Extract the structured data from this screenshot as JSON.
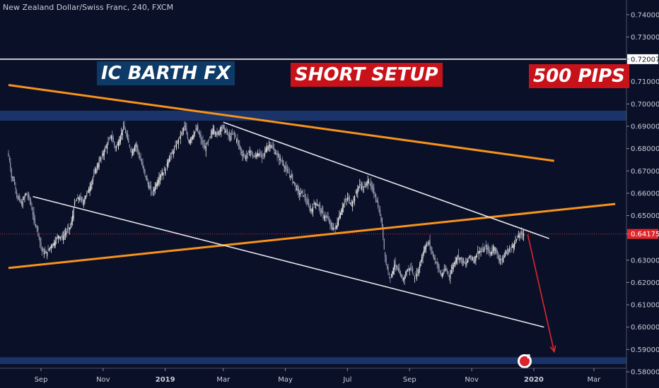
{
  "header": {
    "title": "New Zealand Dollar/Swiss Franc, 240, FXCM"
  },
  "banners": {
    "left": "IC BARTH FX",
    "center": "SHORT SETUP",
    "right": "500 PIPS"
  },
  "colors": {
    "background": "#0b1029",
    "zone": "#1d3a73",
    "orange": "#f7931a",
    "white": "#e6e6ec",
    "red": "#e0262b",
    "up_candle": "#e6e6e6",
    "down_candle": "#9aa0b4"
  },
  "chart_data": {
    "type": "line",
    "symbol": "NZDCHF",
    "timeframe": "240",
    "ylim": [
      0.58,
      0.745
    ],
    "y_ticks": [
      "0.74000",
      "0.73000",
      "0.72007",
      "0.71000",
      "0.70000",
      "0.69000",
      "0.68000",
      "0.67000",
      "0.66000",
      "0.65000",
      "0.64175",
      "0.63000",
      "0.62000",
      "0.61000",
      "0.60000",
      "0.59000",
      "0.58000"
    ],
    "x_ticks": [
      "Sep",
      "Nov",
      "2019",
      "Mar",
      "May",
      "Jul",
      "Sep",
      "Nov",
      "2020",
      "Mar"
    ],
    "x_tick_bars": [
      0,
      30.5,
      61,
      89.5,
      120,
      150.5,
      181,
      211.5,
      242,
      271.5
    ],
    "price_path": [
      [
        -16,
        0.678
      ],
      [
        -15,
        0.675
      ],
      [
        -14,
        0.667
      ],
      [
        -13,
        0.666
      ],
      [
        -11,
        0.658
      ],
      [
        -9,
        0.655
      ],
      [
        -7,
        0.66
      ],
      [
        -5,
        0.657
      ],
      [
        -3,
        0.648
      ],
      [
        -1,
        0.643
      ],
      [
        0,
        0.638
      ],
      [
        1,
        0.634
      ],
      [
        3,
        0.633
      ],
      [
        5,
        0.636
      ],
      [
        7,
        0.638
      ],
      [
        9,
        0.641
      ],
      [
        11,
        0.64
      ],
      [
        13,
        0.643
      ],
      [
        15,
        0.645
      ],
      [
        16,
        0.65
      ],
      [
        17,
        0.656
      ],
      [
        19,
        0.658
      ],
      [
        21,
        0.656
      ],
      [
        23,
        0.66
      ],
      [
        25,
        0.664
      ],
      [
        27,
        0.67
      ],
      [
        29,
        0.674
      ],
      [
        31,
        0.678
      ],
      [
        33,
        0.682
      ],
      [
        35,
        0.686
      ],
      [
        37,
        0.68
      ],
      [
        39,
        0.684
      ],
      [
        41,
        0.69
      ],
      [
        43,
        0.684
      ],
      [
        45,
        0.678
      ],
      [
        47,
        0.682
      ],
      [
        49,
        0.676
      ],
      [
        51,
        0.67
      ],
      [
        53,
        0.664
      ],
      [
        55,
        0.66
      ],
      [
        57,
        0.664
      ],
      [
        59,
        0.668
      ],
      [
        61,
        0.67
      ],
      [
        63,
        0.675
      ],
      [
        65,
        0.678
      ],
      [
        67,
        0.682
      ],
      [
        69,
        0.686
      ],
      [
        71,
        0.69
      ],
      [
        73,
        0.683
      ],
      [
        75,
        0.686
      ],
      [
        77,
        0.689
      ],
      [
        79,
        0.684
      ],
      [
        81,
        0.68
      ],
      [
        83,
        0.684
      ],
      [
        85,
        0.689
      ],
      [
        87,
        0.686
      ],
      [
        89,
        0.69
      ],
      [
        91,
        0.688
      ],
      [
        93,
        0.685
      ],
      [
        95,
        0.687
      ],
      [
        97,
        0.683
      ],
      [
        99,
        0.678
      ],
      [
        101,
        0.676
      ],
      [
        103,
        0.679
      ],
      [
        105,
        0.676
      ],
      [
        107,
        0.678
      ],
      [
        109,
        0.676
      ],
      [
        111,
        0.68
      ],
      [
        113,
        0.682
      ],
      [
        115,
        0.679
      ],
      [
        117,
        0.676
      ],
      [
        119,
        0.674
      ],
      [
        121,
        0.67
      ],
      [
        123,
        0.668
      ],
      [
        125,
        0.664
      ],
      [
        127,
        0.66
      ],
      [
        129,
        0.66
      ],
      [
        131,
        0.656
      ],
      [
        133,
        0.652
      ],
      [
        135,
        0.656
      ],
      [
        137,
        0.654
      ],
      [
        139,
        0.65
      ],
      [
        141,
        0.649
      ],
      [
        143,
        0.645
      ],
      [
        145,
        0.644
      ],
      [
        147,
        0.65
      ],
      [
        149,
        0.655
      ],
      [
        151,
        0.658
      ],
      [
        153,
        0.655
      ],
      [
        155,
        0.66
      ],
      [
        157,
        0.664
      ],
      [
        159,
        0.662
      ],
      [
        161,
        0.666
      ],
      [
        163,
        0.662
      ],
      [
        165,
        0.658
      ],
      [
        167,
        0.65
      ],
      [
        168,
        0.645
      ],
      [
        169,
        0.635
      ],
      [
        170,
        0.628
      ],
      [
        172,
        0.622
      ],
      [
        174,
        0.628
      ],
      [
        176,
        0.625
      ],
      [
        178,
        0.621
      ],
      [
        180,
        0.625
      ],
      [
        182,
        0.627
      ],
      [
        184,
        0.622
      ],
      [
        186,
        0.626
      ],
      [
        187,
        0.63
      ],
      [
        189,
        0.636
      ],
      [
        191,
        0.638
      ],
      [
        193,
        0.632
      ],
      [
        195,
        0.628
      ],
      [
        197,
        0.623
      ],
      [
        199,
        0.626
      ],
      [
        201,
        0.623
      ],
      [
        203,
        0.628
      ],
      [
        205,
        0.632
      ],
      [
        207,
        0.63
      ],
      [
        209,
        0.628
      ],
      [
        211,
        0.632
      ],
      [
        213,
        0.63
      ],
      [
        215,
        0.634
      ],
      [
        217,
        0.634
      ],
      [
        219,
        0.636
      ],
      [
        221,
        0.633
      ],
      [
        223,
        0.636
      ],
      [
        225,
        0.631
      ],
      [
        227,
        0.63
      ],
      [
        229,
        0.634
      ],
      [
        231,
        0.635
      ],
      [
        233,
        0.638
      ],
      [
        235,
        0.641
      ],
      [
        237,
        0.6418
      ]
    ],
    "horizontal_line": 0.72007,
    "current_price": 0.64175,
    "zones": [
      [
        0.6925,
        0.697
      ],
      [
        0.5835,
        0.5865
      ]
    ],
    "trendlines": [
      {
        "color": "orange",
        "from": [
          -16,
          0.7085
        ],
        "to": [
          252,
          0.6745
        ]
      },
      {
        "color": "orange",
        "from": [
          -16,
          0.6265
        ],
        "to": [
          282,
          0.6552
        ]
      },
      {
        "color": "white",
        "from": [
          89.5,
          0.6918
        ],
        "to": [
          249.5,
          0.6397
        ]
      },
      {
        "color": "white",
        "from": [
          -4,
          0.6585
        ],
        "to": [
          247,
          0.6
        ]
      }
    ],
    "arrow": {
      "from": [
        239,
        0.6415
      ],
      "to": [
        252,
        0.589
      ]
    },
    "event_badge": "2"
  }
}
